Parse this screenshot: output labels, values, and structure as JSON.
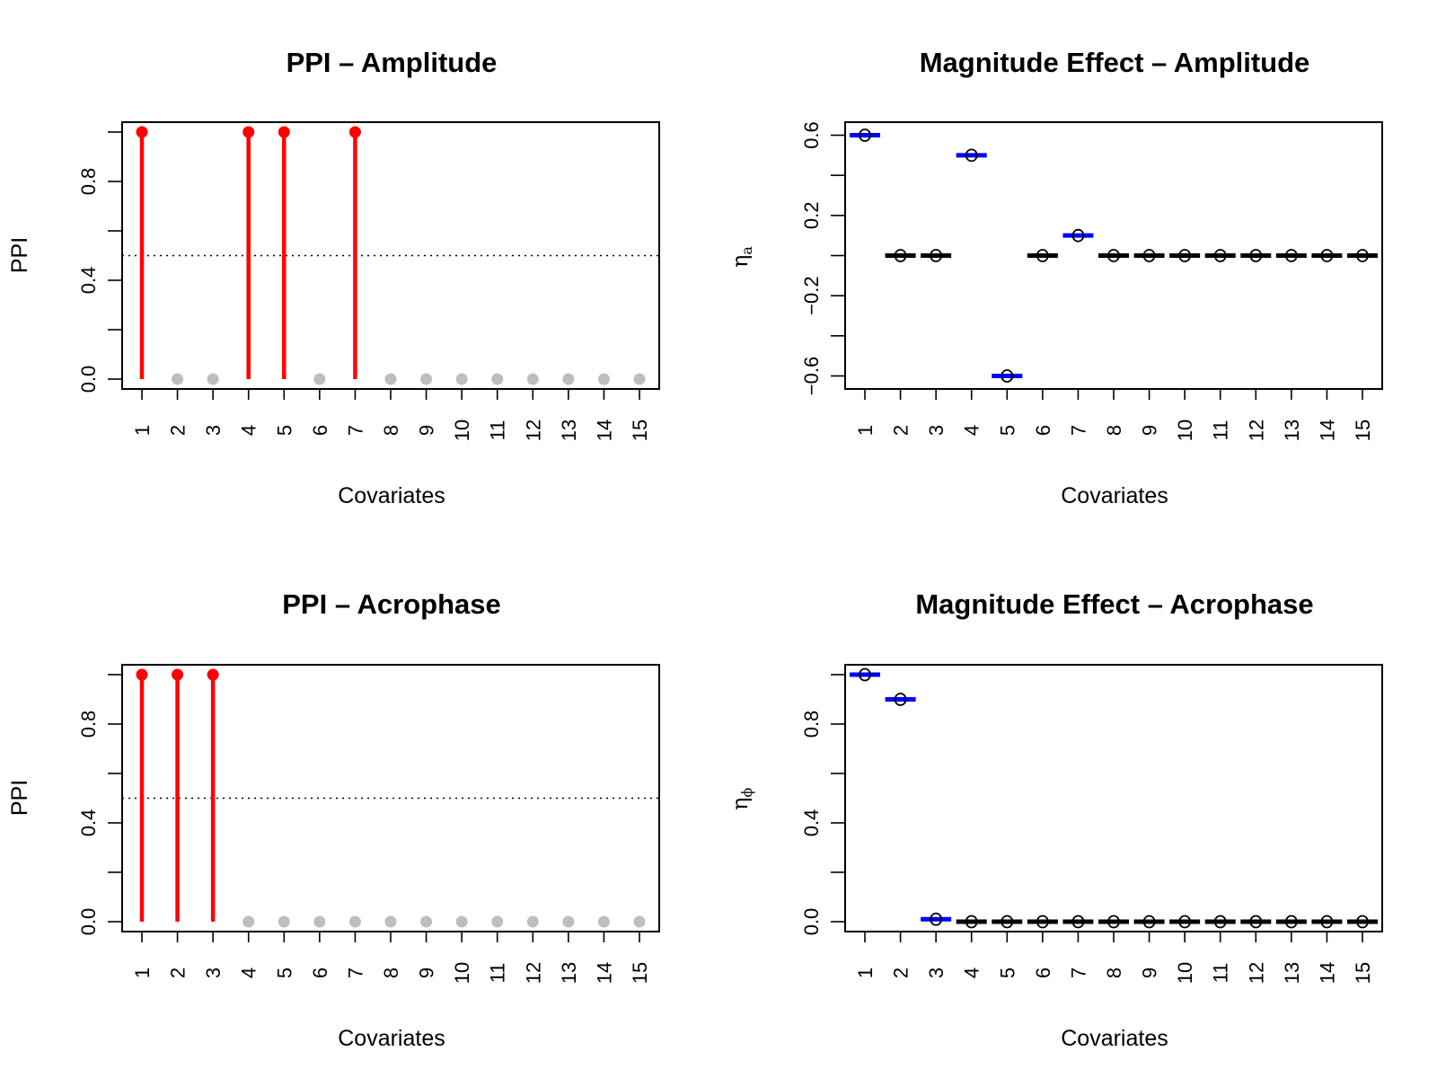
{
  "chart_data": [
    {
      "type": "scatter",
      "plot_style": "lollipop",
      "title": "PPI – Amplitude",
      "xlabel": "Covariates",
      "ylabel": "PPI",
      "categories": [
        "1",
        "2",
        "3",
        "4",
        "5",
        "6",
        "7",
        "8",
        "9",
        "10",
        "11",
        "12",
        "13",
        "14",
        "15"
      ],
      "values": [
        1,
        0,
        0,
        1,
        1,
        0,
        1,
        0,
        0,
        0,
        0,
        0,
        0,
        0,
        0
      ],
      "yticks": [
        "0.0",
        "0.4",
        "0.8"
      ],
      "yminor": [
        0.2,
        0.6,
        1.0
      ],
      "ylim": [
        -0.04,
        1.04
      ],
      "threshold": 0.5,
      "colors": {
        "selected": "#ff0000",
        "unselected": "#bebebe",
        "threshold": "#000000"
      }
    },
    {
      "type": "scatter",
      "plot_style": "estimate",
      "title": "Magnitude Effect – Amplitude",
      "xlabel": "Covariates",
      "ylabel_symbol": "η",
      "ylabel_subscript": "a",
      "categories": [
        "1",
        "2",
        "3",
        "4",
        "5",
        "6",
        "7",
        "8",
        "9",
        "10",
        "11",
        "12",
        "13",
        "14",
        "15"
      ],
      "values": [
        0.6,
        0.0,
        0.0,
        0.5,
        -0.6,
        0.0,
        0.1,
        0.0,
        0.0,
        0.0,
        0.0,
        0.0,
        0.0,
        0.0,
        0.0
      ],
      "estimates": [
        0.6,
        0.0,
        0.0,
        0.5,
        -0.6,
        0.0,
        0.1,
        0.0,
        0.0,
        0.0,
        0.0,
        0.0,
        0.0,
        0.0,
        0.0
      ],
      "selected": [
        true,
        false,
        false,
        true,
        true,
        false,
        true,
        false,
        false,
        false,
        false,
        false,
        false,
        false,
        false
      ],
      "yticks": [
        "−0.6",
        "−0.2",
        "0.2",
        "0.6"
      ],
      "ytick_values": [
        -0.6,
        -0.2,
        0.2,
        0.6
      ],
      "yminor": [
        -0.4,
        0.0,
        0.4
      ],
      "ylim": [
        -0.665,
        0.665
      ],
      "colors": {
        "selected": "#0000ff",
        "unselected": "#000000",
        "point": "#000000"
      }
    },
    {
      "type": "scatter",
      "plot_style": "lollipop",
      "title": "PPI – Acrophase",
      "xlabel": "Covariates",
      "ylabel": "PPI",
      "categories": [
        "1",
        "2",
        "3",
        "4",
        "5",
        "6",
        "7",
        "8",
        "9",
        "10",
        "11",
        "12",
        "13",
        "14",
        "15"
      ],
      "values": [
        1,
        1,
        1,
        0,
        0,
        0,
        0,
        0,
        0,
        0,
        0,
        0,
        0,
        0,
        0
      ],
      "yticks": [
        "0.0",
        "0.4",
        "0.8"
      ],
      "yminor": [
        0.2,
        0.6,
        1.0
      ],
      "ylim": [
        -0.04,
        1.04
      ],
      "threshold": 0.5,
      "colors": {
        "selected": "#ff0000",
        "unselected": "#bebebe",
        "threshold": "#000000"
      }
    },
    {
      "type": "scatter",
      "plot_style": "estimate",
      "title": "Magnitude Effect – Acrophase",
      "xlabel": "Covariates",
      "ylabel_symbol": "η",
      "ylabel_subscript": "ϕ",
      "categories": [
        "1",
        "2",
        "3",
        "4",
        "5",
        "6",
        "7",
        "8",
        "9",
        "10",
        "11",
        "12",
        "13",
        "14",
        "15"
      ],
      "values": [
        1.0,
        0.9,
        0.01,
        0.0,
        0.0,
        0.0,
        0.0,
        0.0,
        0.0,
        0.0,
        0.0,
        0.0,
        0.0,
        0.0,
        0.0
      ],
      "estimates": [
        1.0,
        0.9,
        0.01,
        0.0,
        0.0,
        0.0,
        0.0,
        0.0,
        0.0,
        0.0,
        0.0,
        0.0,
        0.0,
        0.0,
        0.0
      ],
      "selected": [
        true,
        true,
        true,
        false,
        false,
        false,
        false,
        false,
        false,
        false,
        false,
        false,
        false,
        false,
        false
      ],
      "yticks": [
        "0.0",
        "0.4",
        "0.8"
      ],
      "ytick_values": [
        0.0,
        0.4,
        0.8
      ],
      "yminor": [
        0.2,
        0.6,
        1.0
      ],
      "ylim": [
        -0.04,
        1.04
      ],
      "colors": {
        "selected": "#0000ff",
        "unselected": "#000000",
        "point": "#000000"
      }
    }
  ]
}
